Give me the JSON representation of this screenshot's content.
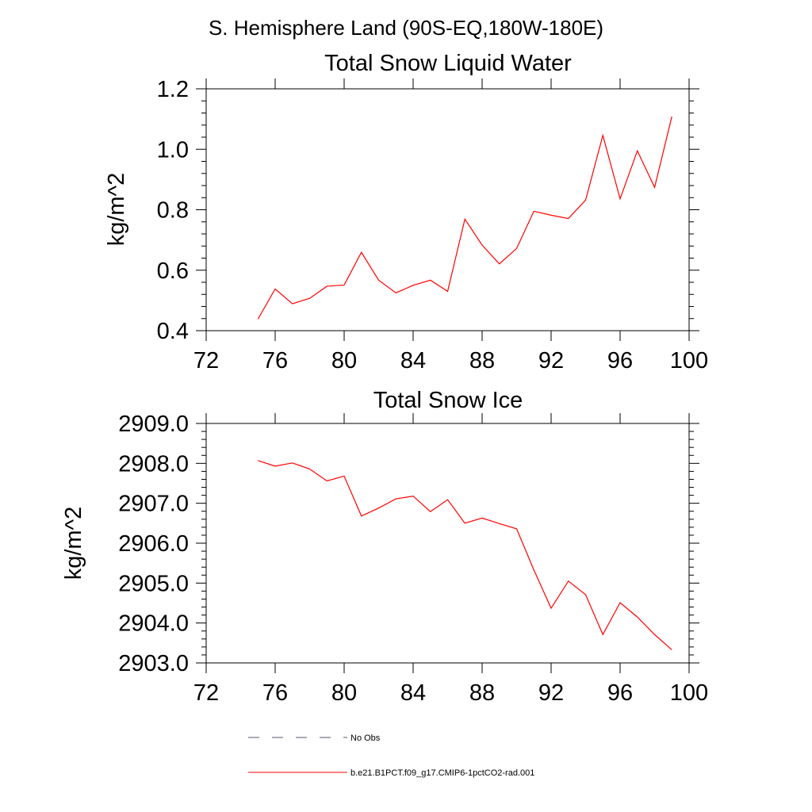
{
  "header": {
    "region_title": "S. Hemisphere Land (90S-EQ,180W-180E)"
  },
  "chart_data": [
    {
      "type": "line",
      "title": "Total Snow Liquid Water",
      "xlabel": "",
      "ylabel": "kg/m^2",
      "xlim": [
        72,
        100
      ],
      "ylim": [
        0.4,
        1.2
      ],
      "x_ticks": [
        "72",
        "76",
        "80",
        "84",
        "88",
        "92",
        "96",
        "100"
      ],
      "y_ticks": [
        "0.4",
        "0.6",
        "0.8",
        "1.0",
        "1.2"
      ],
      "x": [
        75,
        76,
        77,
        78,
        79,
        80,
        81,
        82,
        83,
        84,
        85,
        86,
        87,
        88,
        89,
        90,
        91,
        92,
        93,
        94,
        95,
        96,
        97,
        98,
        99
      ],
      "series": [
        {
          "name": "b.e21.B1PCT.f09_g17.CMIP6-1pctCO2-rad.001",
          "color": "#ff0000",
          "values": [
            0.438,
            0.538,
            0.489,
            0.507,
            0.547,
            0.551,
            0.659,
            0.567,
            0.525,
            0.55,
            0.567,
            0.53,
            0.769,
            0.683,
            0.621,
            0.672,
            0.795,
            0.782,
            0.771,
            0.832,
            1.046,
            0.836,
            0.995,
            0.874,
            1.108
          ]
        }
      ],
      "grid": false
    },
    {
      "type": "line",
      "title": "Total Snow Ice",
      "xlabel": "",
      "ylabel": "kg/m^2",
      "xlim": [
        72,
        100
      ],
      "ylim": [
        2903.0,
        2909.0
      ],
      "x_ticks": [
        "72",
        "76",
        "80",
        "84",
        "88",
        "92",
        "96",
        "100"
      ],
      "y_ticks": [
        "2903.0",
        "2904.0",
        "2905.0",
        "2906.0",
        "2907.0",
        "2908.0",
        "2909.0"
      ],
      "x": [
        75,
        76,
        77,
        78,
        79,
        80,
        81,
        82,
        83,
        84,
        85,
        86,
        87,
        88,
        89,
        90,
        91,
        92,
        93,
        94,
        95,
        96,
        97,
        98,
        99
      ],
      "series": [
        {
          "name": "b.e21.B1PCT.f09_g17.CMIP6-1pctCO2-rad.001",
          "color": "#ff0000",
          "values": [
            2908.07,
            2907.93,
            2908.01,
            2907.86,
            2907.56,
            2907.68,
            2906.68,
            2906.88,
            2907.11,
            2907.18,
            2906.79,
            2907.09,
            2906.5,
            2906.63,
            2906.49,
            2906.36,
            2905.33,
            2904.37,
            2905.05,
            2904.71,
            2903.71,
            2904.51,
            2904.15,
            2903.71,
            2903.33
          ]
        }
      ],
      "grid": false
    }
  ],
  "legend": {
    "items": [
      {
        "label": "No Obs",
        "style": "dashed",
        "color": "#555577"
      },
      {
        "label": "b.e21.B1PCT.f09_g17.CMIP6-1pctCO2-rad.001",
        "style": "solid",
        "color": "#ff0000"
      }
    ]
  }
}
